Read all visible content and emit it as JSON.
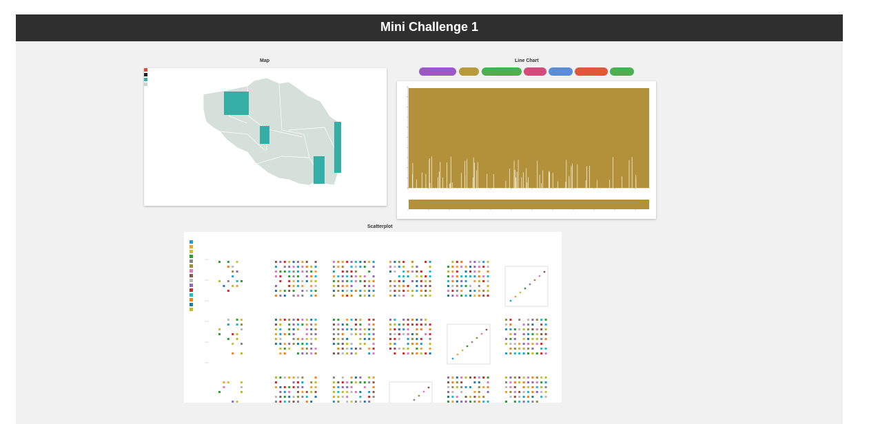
{
  "header": {
    "title": "Mini Challenge 1"
  },
  "map": {
    "title": "Map",
    "legend": [
      {
        "label": "",
        "color": "#e04a3a"
      },
      {
        "label": "",
        "color": "#222222"
      },
      {
        "label": "",
        "color": "#3ab0a4"
      },
      {
        "label": "",
        "color": "#c9d6d0"
      }
    ],
    "region_color": "#d5e0db",
    "highlight_color": "#35afa5"
  },
  "line_chart": {
    "title": "Line Chart",
    "buttons": [
      {
        "label": "",
        "color": "#9b59c8"
      },
      {
        "label": "",
        "color": "#b89a3a"
      },
      {
        "label": "",
        "color": "#4caf50"
      },
      {
        "label": "",
        "color": "#d44a7a"
      },
      {
        "label": "",
        "color": "#5b8dd6"
      },
      {
        "label": "",
        "color": "#e0583a"
      },
      {
        "label": "",
        "color": "#4cb050"
      }
    ],
    "fill_color": "#b3913a"
  },
  "scatterplot": {
    "title": "Scatterplot",
    "legend": [
      {
        "label": "",
        "color": "#1f9ed6"
      },
      {
        "label": "",
        "color": "#f0a030"
      },
      {
        "label": "",
        "color": "#c9c13a"
      },
      {
        "label": "",
        "color": "#2ca02c"
      },
      {
        "label": "",
        "color": "#888888"
      },
      {
        "label": "",
        "color": "#9c8c3c"
      },
      {
        "label": "",
        "color": "#e377c2"
      },
      {
        "label": "",
        "color": "#8c564b"
      },
      {
        "label": "",
        "color": "#bbbbbb"
      },
      {
        "label": "",
        "color": "#9467bd"
      },
      {
        "label": "",
        "color": "#d62728"
      },
      {
        "label": "",
        "color": "#17becf"
      },
      {
        "label": "",
        "color": "#ff7f0e"
      },
      {
        "label": "",
        "color": "#1f77b4"
      },
      {
        "label": "",
        "color": "#bcbd22"
      }
    ]
  }
}
